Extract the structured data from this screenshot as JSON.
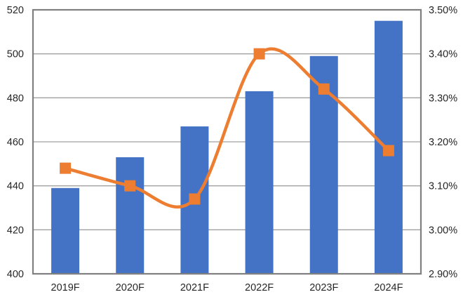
{
  "chart_data": {
    "type": "bar",
    "subtype": "combo-bar-line",
    "title": "",
    "xlabel": "",
    "ylabel": "",
    "categories": [
      "2019F",
      "2020F",
      "2021F",
      "2022F",
      "2023F",
      "2024F"
    ],
    "series": [
      {
        "name": "bars",
        "type": "bar",
        "axis": "left",
        "color": "#4472C4",
        "values": [
          439,
          453,
          467,
          483,
          499,
          515
        ]
      },
      {
        "name": "line",
        "type": "line",
        "axis": "right",
        "color": "#ED7D31",
        "marker": "square",
        "smooth": true,
        "values": [
          3.14,
          3.1,
          3.07,
          3.4,
          3.32,
          3.18
        ]
      }
    ],
    "left_axis": {
      "min": 400,
      "max": 520,
      "step": 20,
      "tick_labels": [
        "400",
        "420",
        "440",
        "460",
        "480",
        "500",
        "520"
      ]
    },
    "right_axis": {
      "min": 2.9,
      "max": 3.5,
      "step": 0.1,
      "tick_labels": [
        "2.90%",
        "3.00%",
        "3.10%",
        "3.20%",
        "3.30%",
        "3.40%",
        "3.50%"
      ]
    },
    "grid": "horizontal",
    "legend": "none",
    "colors": {
      "bar_fill": "#4472C4",
      "line_stroke": "#ED7D31",
      "gridline": "#A0A0A0",
      "plot_border": "#808080",
      "text": "#262626",
      "background": "#FFFFFF"
    }
  }
}
